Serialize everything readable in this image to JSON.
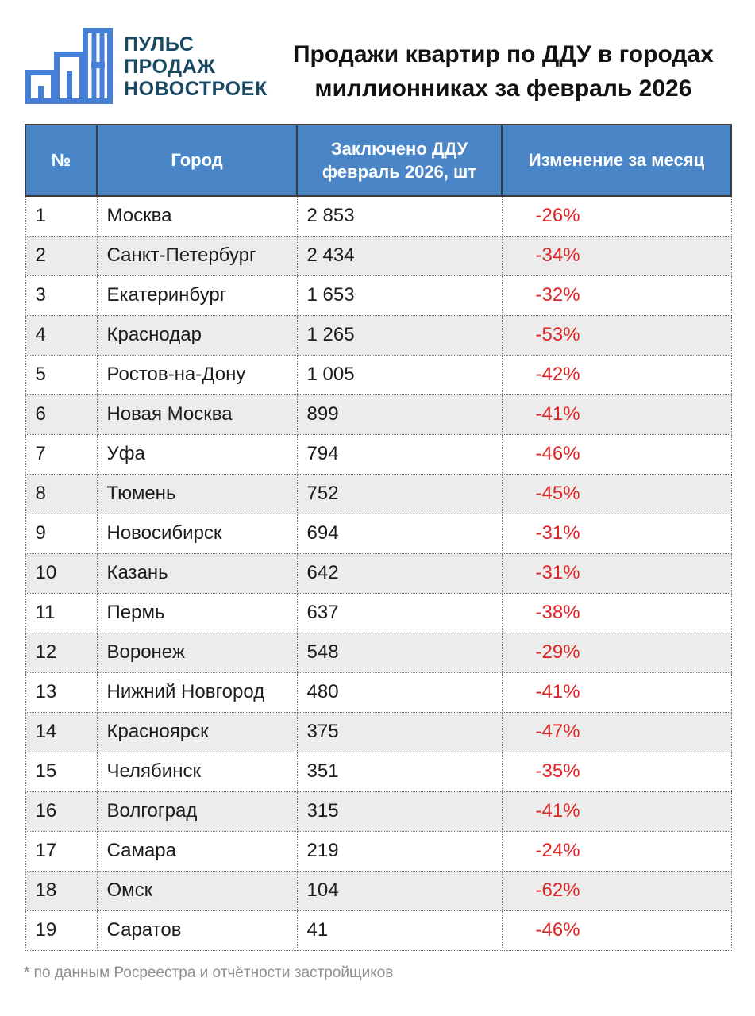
{
  "logo": {
    "line1": "ПУЛЬС",
    "line2": "ПРОДАЖ",
    "line3": "НОВОСТРОЕК",
    "icon": "bar-chart-pulse-icon"
  },
  "title": "Продажи квартир по ДДУ в городах\nмиллионниках за февраль 2026",
  "table": {
    "headers": [
      "№",
      "Город",
      "Заключено ДДУ\nфевраль 2026, шт",
      "Изменение за месяц"
    ],
    "rows": [
      {
        "n": "1",
        "city": "Москва",
        "deals": "2 853",
        "change": "-26%"
      },
      {
        "n": "2",
        "city": "Санкт-Петербург",
        "deals": "2 434",
        "change": "-34%"
      },
      {
        "n": "3",
        "city": "Екатеринбург",
        "deals": "1 653",
        "change": "-32%"
      },
      {
        "n": "4",
        "city": "Краснодар",
        "deals": "1 265",
        "change": "-53%"
      },
      {
        "n": "5",
        "city": "Ростов-на-Дону",
        "deals": "1 005",
        "change": "-42%"
      },
      {
        "n": "6",
        "city": "Новая Москва",
        "deals": "899",
        "change": "-41%"
      },
      {
        "n": "7",
        "city": "Уфа",
        "deals": "794",
        "change": "-46%"
      },
      {
        "n": "8",
        "city": "Тюмень",
        "deals": "752",
        "change": "-45%"
      },
      {
        "n": "9",
        "city": "Новосибирск",
        "deals": "694",
        "change": "-31%"
      },
      {
        "n": "10",
        "city": "Казань",
        "deals": "642",
        "change": "-31%"
      },
      {
        "n": "11",
        "city": "Пермь",
        "deals": "637",
        "change": "-38%"
      },
      {
        "n": "12",
        "city": "Воронеж",
        "deals": "548",
        "change": "-29%"
      },
      {
        "n": "13",
        "city": "Нижний Новгород",
        "deals": "480",
        "change": "-41%"
      },
      {
        "n": "14",
        "city": "Красноярск",
        "deals": "375",
        "change": "-47%"
      },
      {
        "n": "15",
        "city": "Челябинск",
        "deals": "351",
        "change": "-35%"
      },
      {
        "n": "16",
        "city": "Волгоград",
        "deals": "315",
        "change": "-41%"
      },
      {
        "n": "17",
        "city": "Самара",
        "deals": "219",
        "change": "-24%"
      },
      {
        "n": "18",
        "city": "Омск",
        "deals": "104",
        "change": "-62%"
      },
      {
        "n": "19",
        "city": "Саратов",
        "deals": "41",
        "change": "-46%"
      }
    ]
  },
  "footnote": "* по данным Росреестра и отчётности застройщиков",
  "colors": {
    "header_blue": "#4a85c8",
    "logo_blue": "#4580d6",
    "logo_text": "#1a4a63",
    "negative_red": "#e02525",
    "row_alt_gray": "#ececec",
    "footnote_gray": "#8e8e8e"
  },
  "chart_data": {
    "type": "table",
    "title": "Продажи квартир по ДДУ в городах миллионниках за февраль 2026",
    "columns": [
      "№",
      "Город",
      "Заключено ДДУ февраль 2026, шт",
      "Изменение за месяц, %"
    ],
    "rows": [
      [
        1,
        "Москва",
        2853,
        -26
      ],
      [
        2,
        "Санкт-Петербург",
        2434,
        -34
      ],
      [
        3,
        "Екатеринбург",
        1653,
        -32
      ],
      [
        4,
        "Краснодар",
        1265,
        -53
      ],
      [
        5,
        "Ростов-на-Дону",
        1005,
        -42
      ],
      [
        6,
        "Новая Москва",
        899,
        -41
      ],
      [
        7,
        "Уфа",
        794,
        -46
      ],
      [
        8,
        "Тюмень",
        752,
        -45
      ],
      [
        9,
        "Новосибирск",
        694,
        -31
      ],
      [
        10,
        "Казань",
        642,
        -31
      ],
      [
        11,
        "Пермь",
        637,
        -38
      ],
      [
        12,
        "Воронеж",
        548,
        -29
      ],
      [
        13,
        "Нижний Новгород",
        480,
        -41
      ],
      [
        14,
        "Красноярск",
        375,
        -47
      ],
      [
        15,
        "Челябинск",
        351,
        -35
      ],
      [
        16,
        "Волгоград",
        315,
        -41
      ],
      [
        17,
        "Самара",
        219,
        -24
      ],
      [
        18,
        "Омск",
        104,
        -62
      ],
      [
        19,
        "Саратов",
        41,
        -46
      ]
    ],
    "footnote": "* по данным Росреестра и отчётности застройщиков"
  }
}
